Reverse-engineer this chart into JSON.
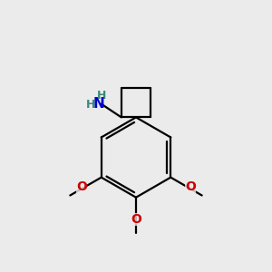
{
  "background_color": "#ebebeb",
  "bond_color": "#000000",
  "nitrogen_color": "#0000cc",
  "oxygen_color": "#cc0000",
  "hydrogen_color": "#3a8a7a",
  "figsize": [
    3.0,
    3.0
  ],
  "dpi": 100,
  "xlim": [
    0,
    10
  ],
  "ylim": [
    0,
    10
  ]
}
